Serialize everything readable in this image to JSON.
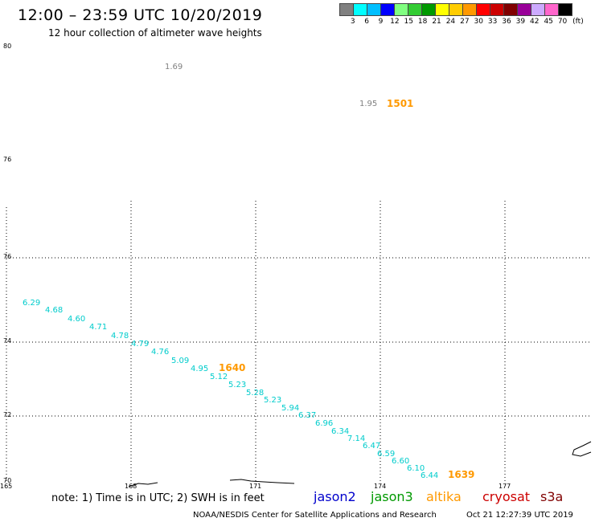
{
  "header": {
    "title": "12:00 – 23:59 UTC 10/20/2019",
    "subtitle": "12 hour collection of altimeter wave heights"
  },
  "colorbar": {
    "colors": [
      "#808080",
      "#00ffff",
      "#00bfff",
      "#0000ff",
      "#80ff80",
      "#33cc33",
      "#009900",
      "#ffff00",
      "#ffcc00",
      "#ff9900",
      "#ff0000",
      "#cc0000",
      "#800000",
      "#990099",
      "#ccaaff",
      "#ff66cc",
      "#000000"
    ],
    "labels": [
      "3",
      "6",
      "9",
      "12",
      "15",
      "18",
      "21",
      "24",
      "27",
      "30",
      "33",
      "36",
      "39",
      "42",
      "45",
      "70"
    ],
    "unit": "(ft)"
  },
  "lat_labels": [
    "80",
    "76",
    "76",
    "74",
    "72",
    "70"
  ],
  "lon_labels": [
    "165",
    "168",
    "171",
    "174",
    "177"
  ],
  "grey_values": [
    "1.69",
    "1.95"
  ],
  "swh_values": [
    "6.29",
    "4.68",
    "4.60",
    "4.71",
    "4.78",
    "4.79",
    "4.76",
    "5.09",
    "4.95",
    "5.12",
    "5.23",
    "5.28",
    "5.23",
    "5.94",
    "6.37",
    "6.96",
    "6.34",
    "7.14",
    "6.47",
    "6.59",
    "6.60",
    "6.10",
    "6.44"
  ],
  "time_labels": [
    "1501",
    "1640",
    "1639"
  ],
  "footer": {
    "note": "note: 1) Time is in UTC; 2) SWH is in feet",
    "sats": [
      {
        "name": "jason2",
        "color": "#0000cc"
      },
      {
        "name": "jason3",
        "color": "#009900"
      },
      {
        "name": "altika",
        "color": "#ff9900"
      },
      {
        "name": "cryosat",
        "color": "#cc0000"
      },
      {
        "name": "s3a",
        "color": "#800000"
      }
    ],
    "center": "NOAA/NESDIS Center for Satellite Applications and Research",
    "stamp": "Oct 21 12:27:39 UTC 2019"
  },
  "colors": {
    "swh_text": "#00cccc",
    "time_text": "#ff9900",
    "grey_text": "#808080"
  }
}
